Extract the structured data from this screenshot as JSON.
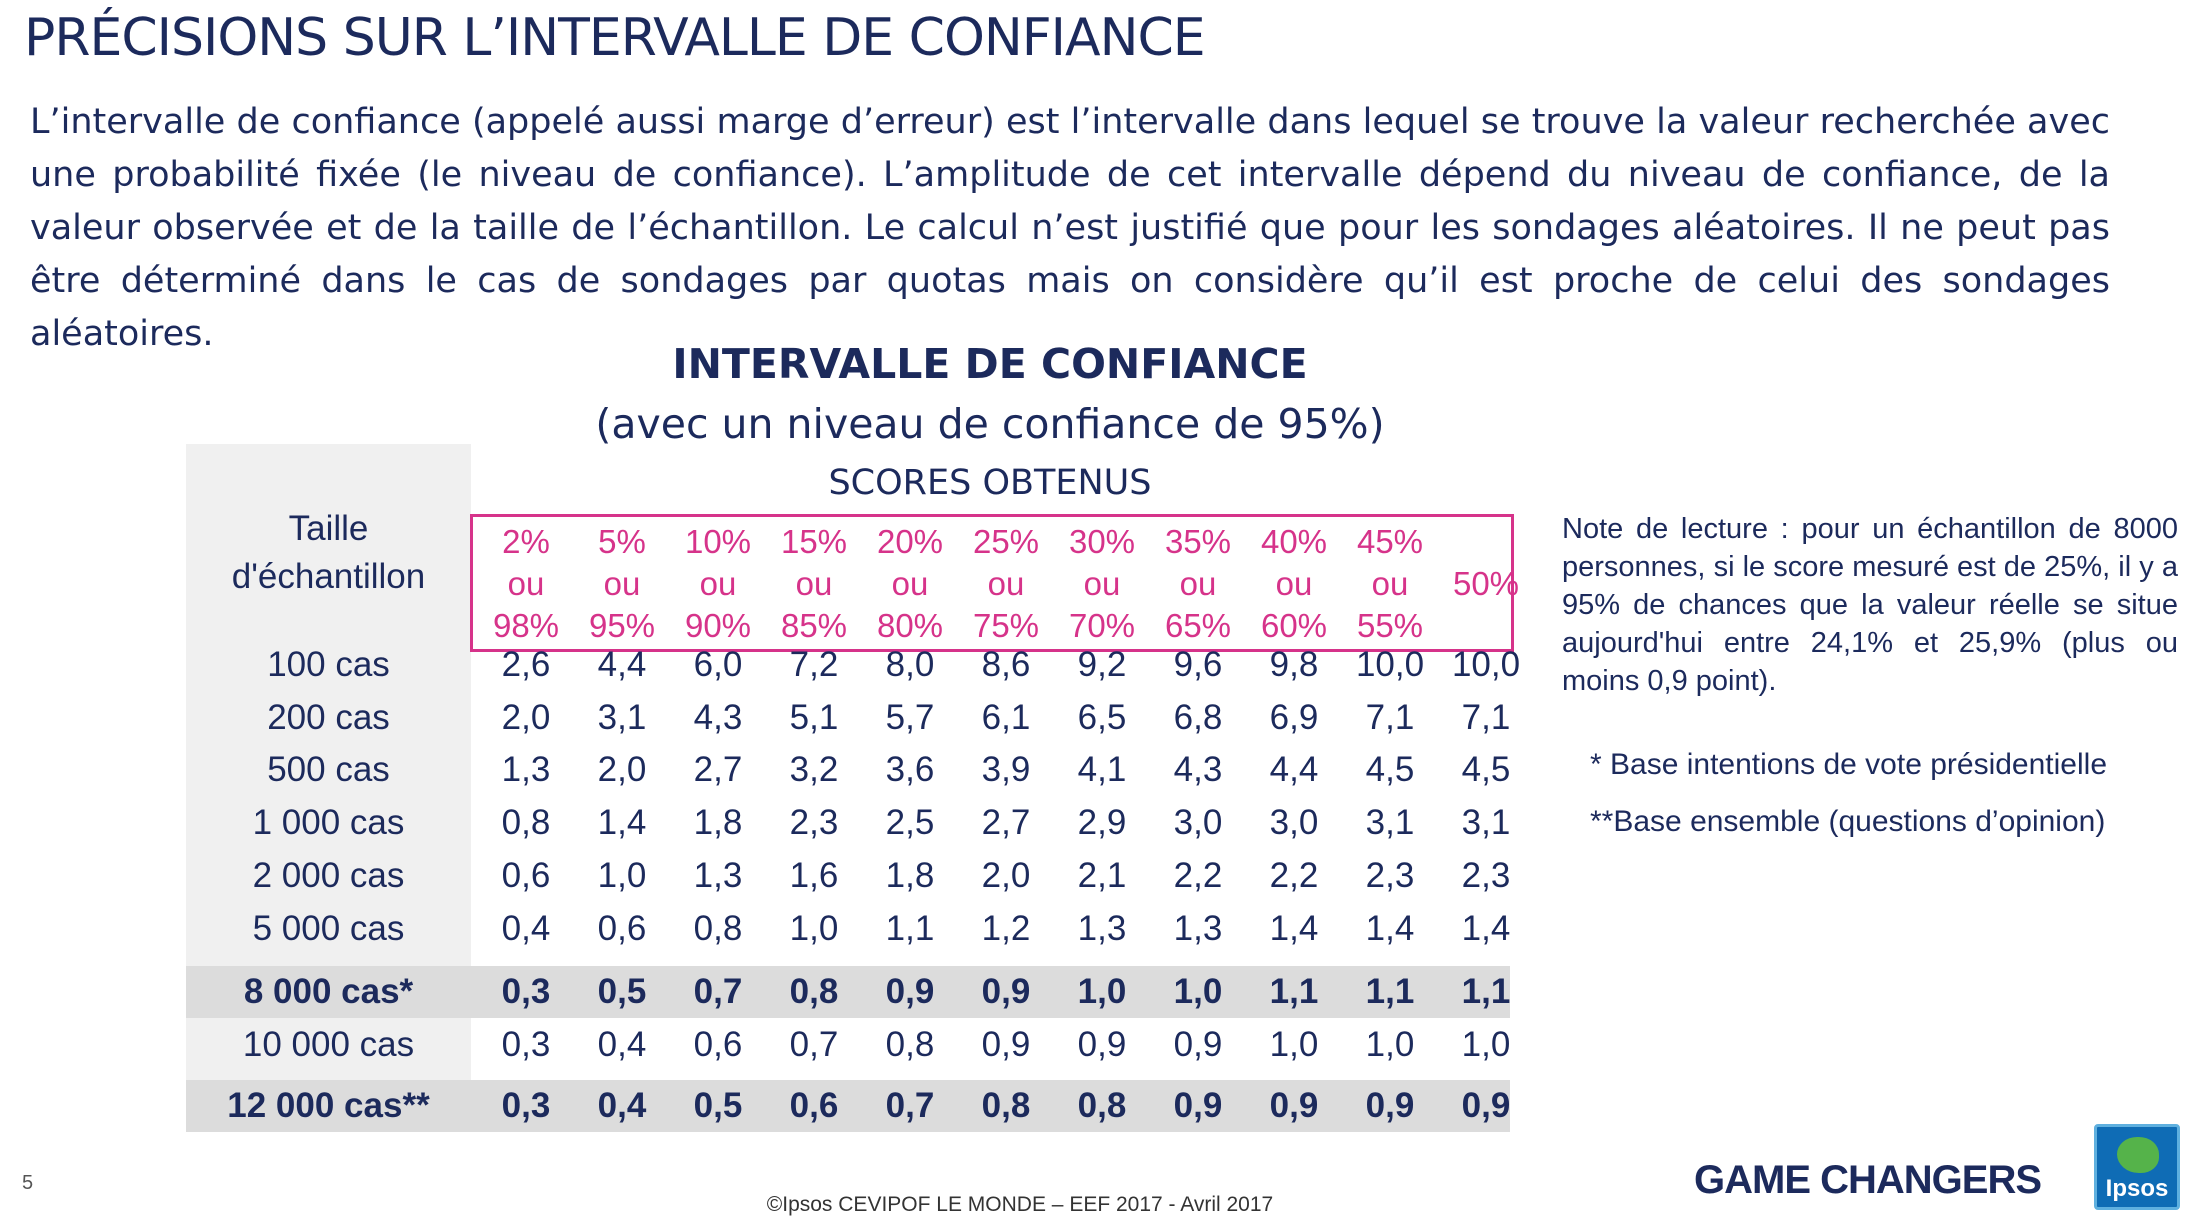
{
  "title": "PRÉCISIONS SUR L’INTERVALLE DE CONFIANCE",
  "intro": "L’intervalle de confiance (appelé aussi marge d’erreur) est l’intervalle dans lequel se trouve la valeur recherchée avec une probabilité fixée (le niveau de confiance). L’amplitude de cet intervalle dépend du niveau de confiance, de la valeur observée et de la taille de l’échantillon. Le calcul n’est justifié que pour les sondages aléatoires. Il ne peut pas être déterminé dans le cas de sondages par quotas mais on considère qu’il est proche de celui des sondages aléatoires.",
  "table": {
    "title": "INTERVALLE DE CONFIANCE",
    "subtitle": "(avec un niveau de confiance de 95%)",
    "scores_label": "SCORES OBTENUS",
    "size_header_line1": "Taille",
    "size_header_line2": "d'échantillon",
    "columns": [
      {
        "top": "2%",
        "mid": "ou",
        "bottom": "98%"
      },
      {
        "top": "5%",
        "mid": "ou",
        "bottom": "95%"
      },
      {
        "top": "10%",
        "mid": "ou",
        "bottom": "90%"
      },
      {
        "top": "15%",
        "mid": "ou",
        "bottom": "85%"
      },
      {
        "top": "20%",
        "mid": "ou",
        "bottom": "80%"
      },
      {
        "top": "25%",
        "mid": "ou",
        "bottom": "75%"
      },
      {
        "top": "30%",
        "mid": "ou",
        "bottom": "70%"
      },
      {
        "top": "35%",
        "mid": "ou",
        "bottom": "65%"
      },
      {
        "top": "40%",
        "mid": "ou",
        "bottom": "60%"
      },
      {
        "top": "45%",
        "mid": "ou",
        "bottom": "55%"
      },
      {
        "top": "",
        "mid": "50%",
        "bottom": ""
      }
    ],
    "rows": [
      {
        "label": "100 cas",
        "values": [
          "2,6",
          "4,4",
          "6,0",
          "7,2",
          "8,0",
          "8,6",
          "9,2",
          "9,6",
          "9,8",
          "10,0",
          "10,0"
        ]
      },
      {
        "label": "200 cas",
        "values": [
          "2,0",
          "3,1",
          "4,3",
          "5,1",
          "5,7",
          "6,1",
          "6,5",
          "6,8",
          "6,9",
          "7,1",
          "7,1"
        ]
      },
      {
        "label": "500 cas",
        "values": [
          "1,3",
          "2,0",
          "2,7",
          "3,2",
          "3,6",
          "3,9",
          "4,1",
          "4,3",
          "4,4",
          "4,5",
          "4,5"
        ]
      },
      {
        "label": "1 000 cas",
        "values": [
          "0,8",
          "1,4",
          "1,8",
          "2,3",
          "2,5",
          "2,7",
          "2,9",
          "3,0",
          "3,0",
          "3,1",
          "3,1"
        ]
      },
      {
        "label": "2 000 cas",
        "values": [
          "0,6",
          "1,0",
          "1,3",
          "1,6",
          "1,8",
          "2,0",
          "2,1",
          "2,2",
          "2,2",
          "2,3",
          "2,3"
        ]
      },
      {
        "label": "5 000 cas",
        "values": [
          "0,4",
          "0,6",
          "0,8",
          "1,0",
          "1,1",
          "1,2",
          "1,3",
          "1,3",
          "1,4",
          "1,4",
          "1,4"
        ]
      },
      {
        "label": "8 000 cas*",
        "values": [
          "0,3",
          "0,5",
          "0,7",
          "0,8",
          "0,9",
          "0,9",
          "1,0",
          "1,0",
          "1,1",
          "1,1",
          "1,1"
        ]
      },
      {
        "label": "10 000 cas",
        "values": [
          "0,3",
          "0,4",
          "0,6",
          "0,7",
          "0,8",
          "0,9",
          "0,9",
          "0,9",
          "1,0",
          "1,0",
          "1,0"
        ]
      },
      {
        "label": "12 000 cas**",
        "values": [
          "0,3",
          "0,4",
          "0,5",
          "0,6",
          "0,7",
          "0,8",
          "0,8",
          "0,9",
          "0,9",
          "0,9",
          "0,9"
        ]
      }
    ]
  },
  "note": "Note de lecture : pour un échantillon de 8000 personnes, si le score mesuré est de 25%, il y a 95% de chances que la valeur réelle se situe aujourd'hui entre 24,1% et 25,9% (plus ou moins 0,9 point).",
  "footnote1": "* Base intentions de vote présidentielle",
  "footnote2": "**Base ensemble (questions d’opinion)",
  "page_number": "5",
  "credits": "©Ipsos  CEVIPOF LE MONDE – EEF 2017 -  Avril 2017",
  "tagline": "GAME CHANGERS",
  "logo_text": "Ipsos",
  "colors": {
    "navy": "#1c2a5c",
    "pink": "#d6338a",
    "band": "#dcdcdc",
    "logo_blue": "#0f6cb5",
    "logo_green": "#55b34a"
  }
}
